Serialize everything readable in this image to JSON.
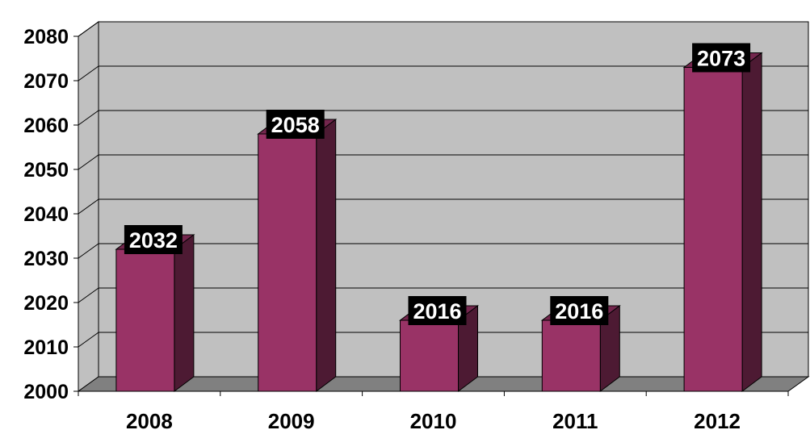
{
  "chart_data": {
    "type": "bar",
    "title": "",
    "xlabel": "",
    "ylabel": "",
    "categories": [
      "2008",
      "2009",
      "2010",
      "2011",
      "2012"
    ],
    "values": [
      2032,
      2058,
      2016,
      2016,
      2073
    ],
    "data_labels": [
      "2032",
      "2058",
      "2016",
      "2016",
      "2073"
    ],
    "ylim": [
      2000,
      2080
    ],
    "yticks": [
      2000,
      2010,
      2020,
      2030,
      2040,
      2050,
      2060,
      2070,
      2080
    ],
    "ytick_labels": [
      "2000",
      "2010",
      "2020",
      "2030",
      "2040",
      "2050",
      "2060",
      "2070",
      "2080"
    ],
    "grid": true,
    "legend": "none",
    "style": "3d-column",
    "colors": {
      "bar_front": "#993366",
      "bar_side": "#4d1a33",
      "bar_top": "#73264d",
      "wall": "#c0c0c0",
      "floor": "#808080",
      "label_bg": "#000000",
      "label_text": "#ffffff"
    }
  }
}
